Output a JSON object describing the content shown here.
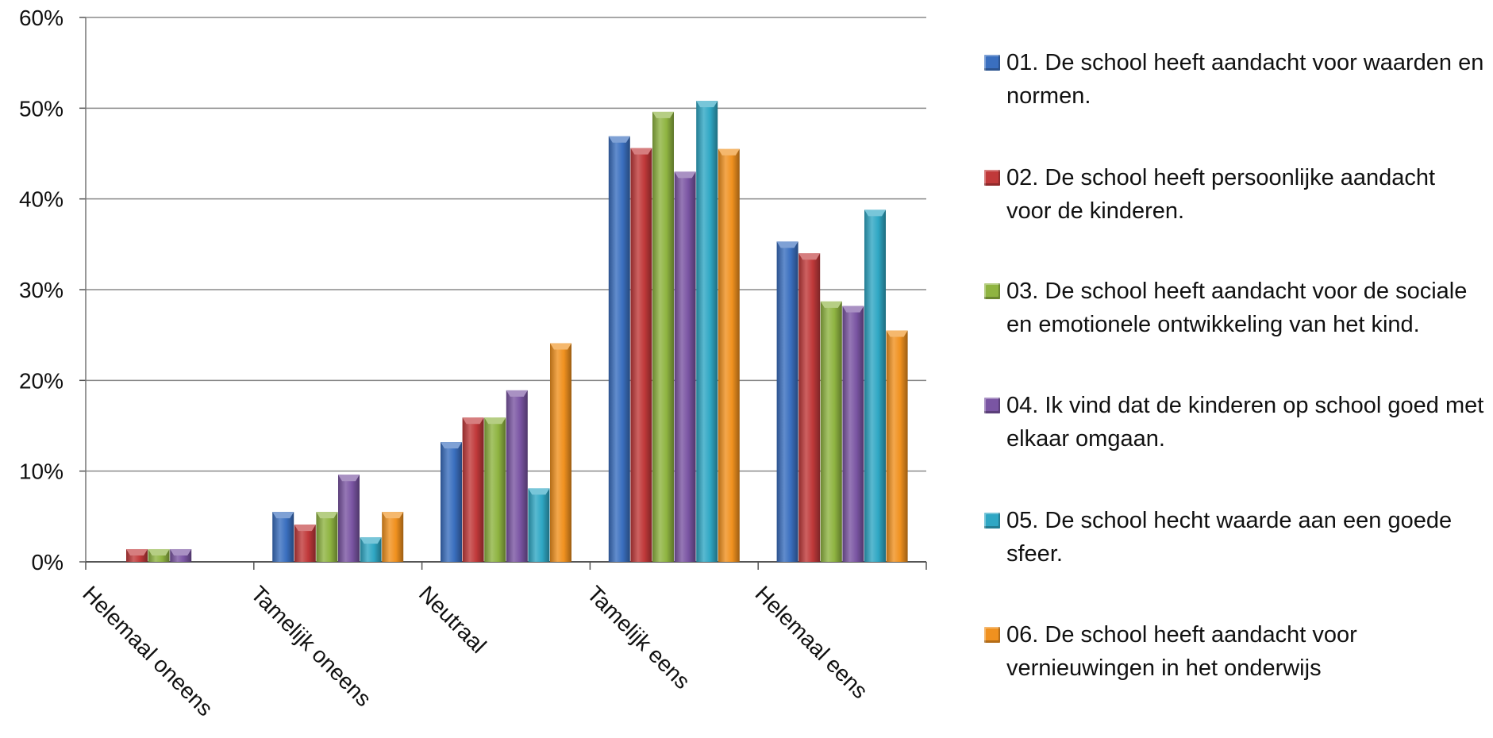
{
  "chart_data": {
    "type": "bar",
    "categories": [
      "Helemaal oneens",
      "Tamelijk oneens",
      "Neutraal",
      "Tamelijk eens",
      "Helemaal eens"
    ],
    "series": [
      {
        "name": "01.   De school heeft aandacht voor waarden en normen.",
        "color": "#3a6fbf",
        "values": [
          0,
          5.5,
          13.2,
          46.9,
          35.3
        ]
      },
      {
        "name": "02.   De school heeft persoonlijke aandacht voor de kinderen.",
        "color": "#c0393a",
        "values": [
          1.4,
          4.1,
          15.9,
          45.6,
          34.0
        ]
      },
      {
        "name": "03.   De school heeft aandacht voor de sociale en emotionele ontwikkeling van het kind.",
        "color": "#8fb441",
        "values": [
          1.4,
          5.5,
          15.9,
          49.6,
          28.7
        ]
      },
      {
        "name": "04.   Ik vind dat de kinderen op school goed met elkaar omgaan.",
        "color": "#7a55a3",
        "values": [
          1.4,
          9.6,
          18.9,
          43.0,
          28.2
        ]
      },
      {
        "name": "05.   De school hecht waarde aan een goede sfeer.",
        "color": "#2fa7c4",
        "values": [
          0,
          2.7,
          8.1,
          50.8,
          38.8
        ]
      },
      {
        "name": "06.   De school heeft aandacht voor vernieuwingen in het onderwijs",
        "color": "#f0911f",
        "values": [
          0,
          5.5,
          24.1,
          45.5,
          25.5
        ]
      }
    ],
    "yticks": [
      "0%",
      "10%",
      "20%",
      "30%",
      "40%",
      "50%",
      "60%"
    ],
    "ylim": [
      0,
      60
    ],
    "grid": true,
    "legend_position": "right"
  }
}
